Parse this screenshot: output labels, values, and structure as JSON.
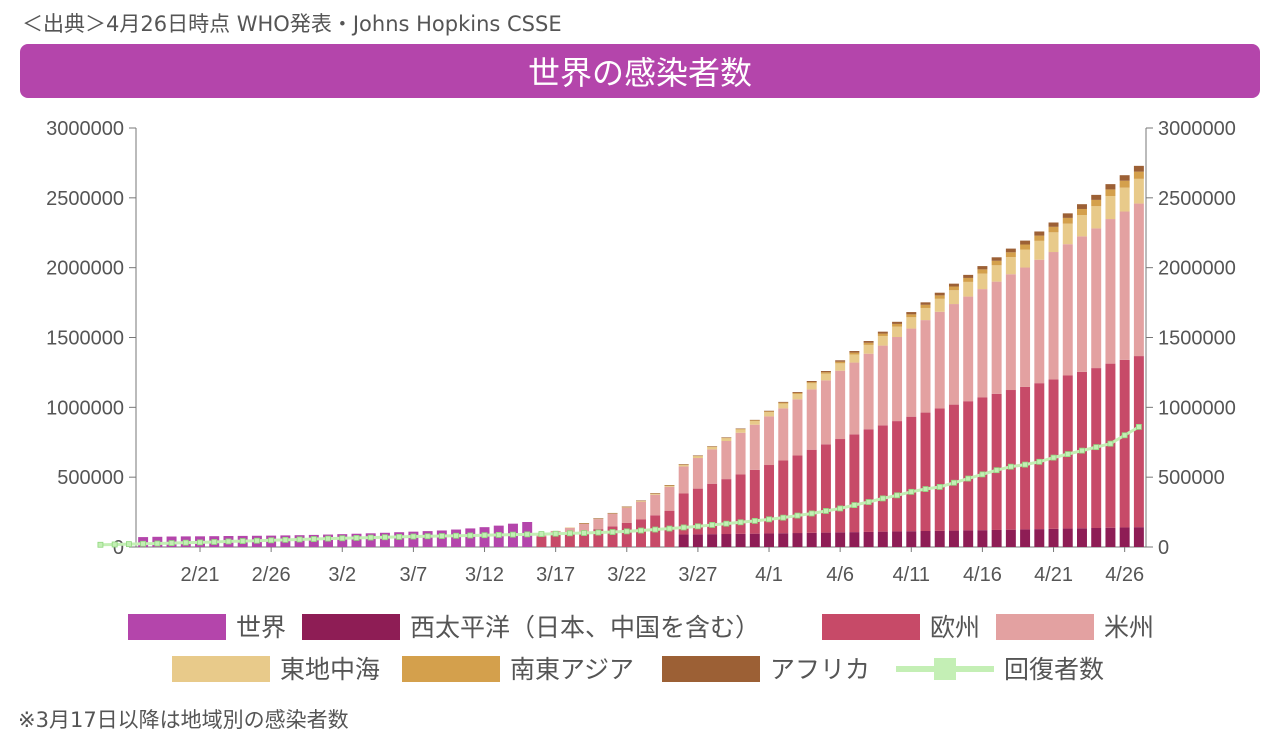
{
  "source_text": "＜出典＞4月26日時点 WHO発表・Johns Hopkins CSSE",
  "footnote": "※3月17日以降は地域別の感染者数",
  "chart_data": {
    "type": "bar",
    "title": "世界の感染者数",
    "stacked": true,
    "ylim": [
      0,
      3000000
    ],
    "y_ticks": [
      "0",
      "500000",
      "1000000",
      "1500000",
      "2000000",
      "2500000",
      "3000000"
    ],
    "x_tick_labels": [
      "2/21",
      "2/26",
      "3/2",
      "3/7",
      "3/12",
      "3/17",
      "3/22",
      "3/27",
      "4/1",
      "4/6",
      "4/11",
      "4/16",
      "4/21",
      "4/26"
    ],
    "first_date": "2/17",
    "split_index": 29,
    "colors": {
      "world": "#b445ab",
      "wpac": "#8e1d55",
      "europe": "#c74a68",
      "americas": "#e3a1a1",
      "emed": "#e8ca8a",
      "seasia": "#d4a04c",
      "africa": "#9c6035",
      "recovered": "#c4efb5"
    },
    "legend": [
      {
        "key": "world",
        "label": "世界"
      },
      {
        "key": "wpac",
        "label": "西太平洋（日本、中国を含む）"
      },
      {
        "key": "europe",
        "label": "欧州"
      },
      {
        "key": "americas",
        "label": "米州"
      },
      {
        "key": "emed",
        "label": "東地中海"
      },
      {
        "key": "seasia",
        "label": "南東アジア"
      },
      {
        "key": "africa",
        "label": "アフリカ"
      },
      {
        "key": "recovered",
        "label": "回復者数"
      }
    ],
    "series": {
      "world": [
        71000,
        73000,
        75000,
        76000,
        76500,
        77500,
        78600,
        79500,
        80500,
        81500,
        83000,
        84500,
        86600,
        89000,
        92000,
        95000,
        98000,
        101800,
        105800,
        109800,
        113700,
        118300,
        125000,
        133000,
        142000,
        153000,
        167000,
        179000
      ],
      "wpac": [
        90000,
        91000,
        92000,
        93000,
        94000,
        95500,
        97000,
        98500,
        100000,
        101500,
        103000,
        105000,
        106500,
        108000,
        110000,
        111500,
        113000,
        114500,
        116000,
        117500,
        119000,
        120500,
        122000,
        124000,
        126000,
        128000,
        130000,
        132000,
        134000,
        136000,
        138000,
        140000,
        142000
      ],
      "europe": [
        75000,
        86000,
        97000,
        110000,
        128000,
        148000,
        172000,
        197000,
        227000,
        260000,
        293000,
        327000,
        361000,
        393000,
        425000,
        457000,
        490000,
        521000,
        555000,
        595000,
        632000,
        668000,
        700000,
        735000,
        761000,
        790000,
        820000,
        848000,
        876000,
        902000,
        925000,
        950000,
        975000,
        1000000,
        1020000,
        1045000,
        1070000,
        1096000,
        1120000,
        1145000,
        1175000,
        1200000,
        1225000
      ],
      "americas": [
        3500,
        5000,
        7000,
        10000,
        13000,
        17000,
        22000,
        29000,
        40000,
        56000,
        72000,
        90000,
        110000,
        127000,
        147000,
        171000,
        194000,
        219000,
        246000,
        273000,
        299000,
        323000,
        348000,
        373000,
        402000,
        432000,
        458000,
        489000,
        514000,
        541000,
        571000,
        602000,
        631000,
        662000,
        692000,
        720000,
        749000,
        776000,
        803000,
        829000,
        855000,
        884000,
        912000,
        940000,
        970000,
        1000000,
        1035000,
        1062000,
        1092000
      ],
      "emed": [
        3000,
        3500,
        4200,
        5100,
        6200,
        7600,
        9200,
        11000,
        13000,
        15300,
        18000,
        21000,
        24000,
        27000,
        31000,
        35000,
        39000,
        43500,
        48000,
        53000,
        58000,
        63000,
        69000,
        75000,
        81000,
        87000,
        93000,
        99000,
        105000,
        111000,
        117000,
        123000,
        129000,
        135000,
        141000,
        147000,
        153000,
        159000,
        165000,
        171000,
        177000
      ],
      "seasia": [
        200,
        300,
        400,
        500,
        600,
        800,
        1000,
        1300,
        1700,
        2200,
        2800,
        3500,
        4300,
        5200,
        6200,
        7400,
        8800,
        10200,
        11800,
        13500,
        15300,
        17000,
        18800,
        20700,
        22600,
        24600,
        26500,
        28400,
        30300,
        32200,
        34000,
        35800,
        37600,
        39400,
        41300,
        43200,
        45200,
        47300,
        49400,
        51500
      ],
      "africa": [
        100,
        200,
        300,
        400,
        500,
        600,
        800,
        1000,
        1300,
        1700,
        2200,
        2800,
        3500,
        4300,
        5300,
        6400,
        7600,
        8800,
        10000,
        11200,
        12500,
        13800,
        15100,
        16400,
        17700,
        19100,
        20500,
        22000,
        23500,
        25000,
        26500,
        28000,
        29500,
        31000,
        32600,
        34300,
        36000,
        37800,
        39600,
        41500
      ],
      "recovered": [
        16000,
        18000,
        20500,
        23000,
        25000,
        28000,
        31000,
        33000,
        36000,
        40000,
        42500,
        45000,
        48000,
        51000,
        54000,
        57000,
        60000,
        62500,
        65000,
        67500,
        70000,
        72500,
        75000,
        77000,
        78500,
        80500,
        82500,
        84500,
        86500,
        88500,
        90500,
        92500,
        95000,
        98000,
        100000,
        103500,
        107000,
        112000,
        118000,
        125000,
        132000,
        140000,
        148000,
        158000,
        167000,
        177000,
        187000,
        198000,
        210000,
        225000,
        240000,
        258000,
        276000,
        300000,
        322000,
        348000,
        370000,
        395000,
        415000,
        430000,
        460000,
        490000,
        520000,
        550000,
        575000,
        590000,
        610000,
        640000,
        665000,
        690000,
        715000,
        740000,
        800000,
        860000
      ]
    }
  }
}
